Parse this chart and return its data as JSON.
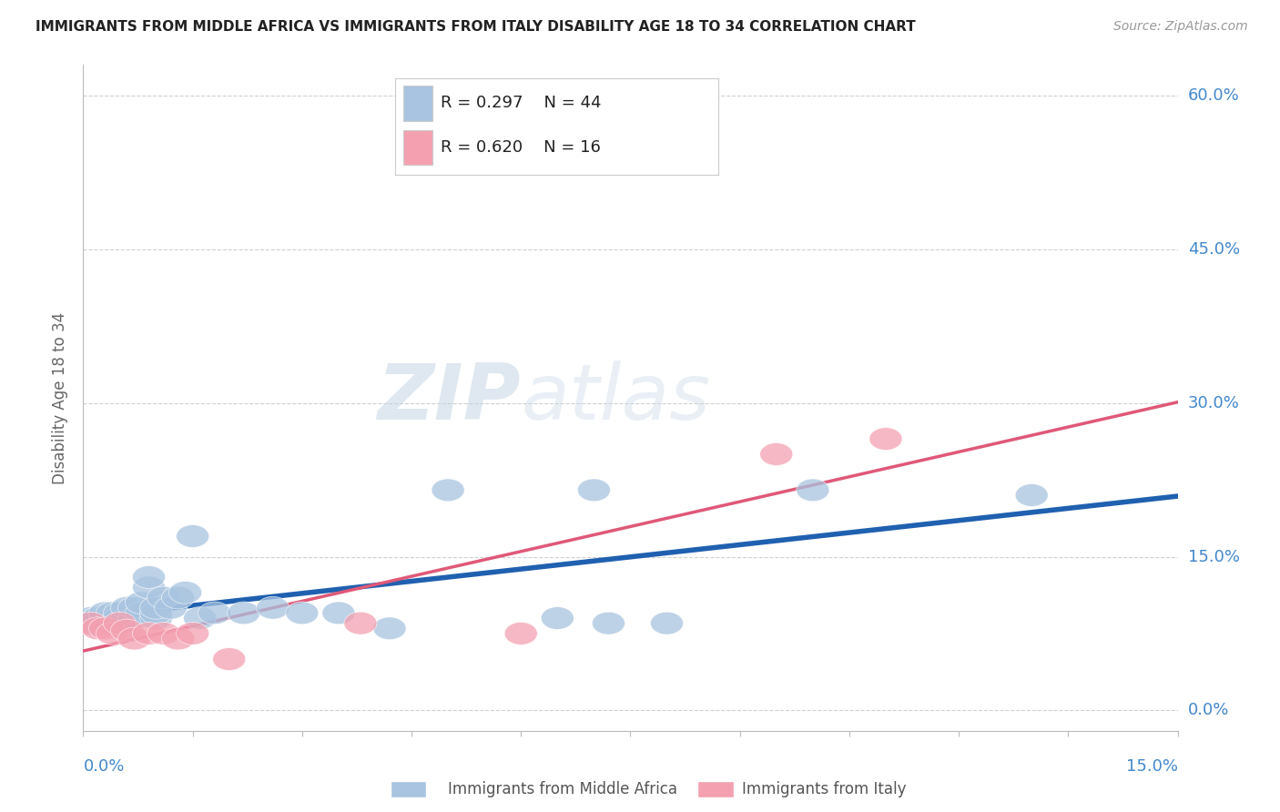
{
  "title": "IMMIGRANTS FROM MIDDLE AFRICA VS IMMIGRANTS FROM ITALY DISABILITY AGE 18 TO 34 CORRELATION CHART",
  "source": "Source: ZipAtlas.com",
  "ylabel": "Disability Age 18 to 34",
  "ytick_values": [
    0.0,
    0.15,
    0.3,
    0.45,
    0.6
  ],
  "xlim": [
    0.0,
    0.15
  ],
  "ylim": [
    -0.02,
    0.63
  ],
  "r_blue": 0.297,
  "n_blue": 44,
  "r_pink": 0.62,
  "n_pink": 16,
  "blue_color": "#a8c4e0",
  "pink_color": "#f4a0b0",
  "blue_line_color": "#2060b0",
  "pink_line_color": "#e05878",
  "legend_blue_label": "Immigrants from Middle Africa",
  "legend_pink_label": "Immigrants from Italy",
  "watermark_zip": "ZIP",
  "watermark_atlas": "atlas",
  "tick_color": "#4488cc",
  "blue_x": [
    0.001,
    0.001,
    0.002,
    0.002,
    0.002,
    0.003,
    0.003,
    0.003,
    0.004,
    0.004,
    0.004,
    0.005,
    0.005,
    0.005,
    0.006,
    0.006,
    0.007,
    0.007,
    0.008,
    0.008,
    0.009,
    0.009,
    0.01,
    0.01,
    0.01,
    0.011,
    0.012,
    0.013,
    0.014,
    0.015,
    0.016,
    0.018,
    0.022,
    0.026,
    0.03,
    0.035,
    0.042,
    0.05,
    0.065,
    0.07,
    0.072,
    0.08,
    0.1,
    0.13
  ],
  "blue_y": [
    0.09,
    0.085,
    0.09,
    0.085,
    0.09,
    0.085,
    0.09,
    0.095,
    0.085,
    0.09,
    0.095,
    0.085,
    0.09,
    0.095,
    0.09,
    0.1,
    0.09,
    0.1,
    0.095,
    0.105,
    0.12,
    0.13,
    0.09,
    0.095,
    0.1,
    0.11,
    0.1,
    0.11,
    0.115,
    0.17,
    0.09,
    0.095,
    0.095,
    0.1,
    0.095,
    0.095,
    0.08,
    0.215,
    0.09,
    0.215,
    0.085,
    0.085,
    0.215,
    0.21
  ],
  "pink_x": [
    0.001,
    0.002,
    0.003,
    0.004,
    0.005,
    0.006,
    0.007,
    0.009,
    0.011,
    0.013,
    0.015,
    0.02,
    0.038,
    0.06,
    0.095,
    0.11
  ],
  "pink_y": [
    0.085,
    0.08,
    0.08,
    0.075,
    0.085,
    0.078,
    0.07,
    0.075,
    0.075,
    0.07,
    0.075,
    0.05,
    0.085,
    0.075,
    0.25,
    0.265
  ]
}
